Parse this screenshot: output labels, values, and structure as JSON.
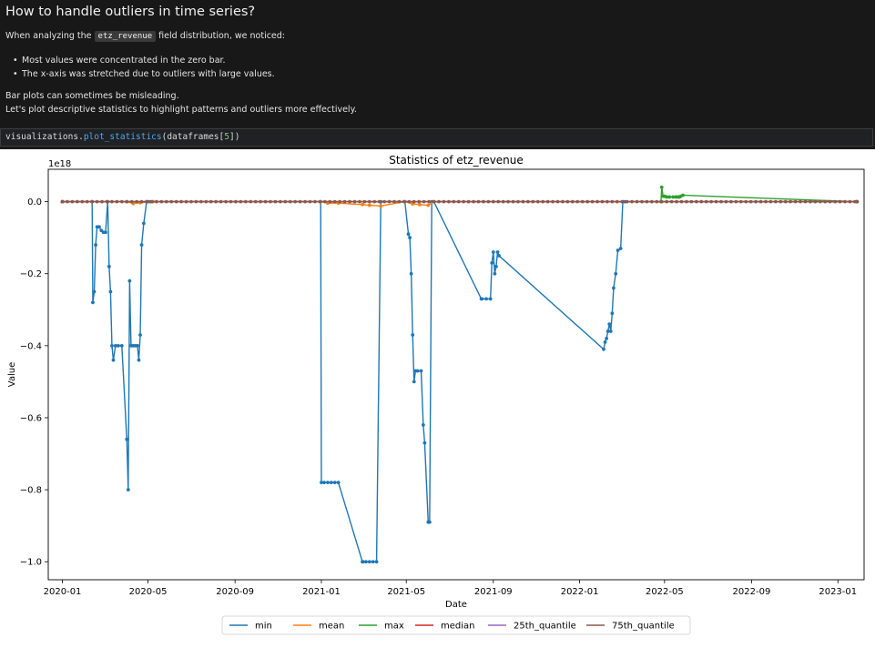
{
  "markdown": {
    "title": "How to handle outliers in time series?",
    "intro_before": "When analyzing the ",
    "intro_code": "etz_revenue",
    "intro_after": " field distribution, we noticed:",
    "bullets": [
      "Most values were concentrated in the zero bar.",
      "The x-axis was stretched due to outliers with large values."
    ],
    "outro_line1": "Bar plots can sometimes be misleading.",
    "outro_line2": "Let's plot descriptive statistics to highlight patterns and outliers more effectively."
  },
  "code_cell": {
    "obj": "visualizations",
    "dot": ".",
    "fn": "plot_statistics",
    "open": "(dataframes[",
    "index": "5",
    "close": "])"
  },
  "chart_data": {
    "type": "line",
    "title": "Statistics of etz_revenue",
    "xlabel": "Date",
    "ylabel": "Value",
    "y_scale_label": "1e18",
    "x_ticks": [
      "2020-01",
      "2020-05",
      "2020-09",
      "2021-01",
      "2021-05",
      "2021-09",
      "2022-01",
      "2022-05",
      "2022-09",
      "2023-01"
    ],
    "y_ticks": [
      "0.0",
      "−0.2",
      "−0.4",
      "−0.6",
      "−0.8",
      "−1.0"
    ],
    "ylim": [
      -1.05,
      0.09
    ],
    "xlim": [
      "2019-12-12",
      "2023-02-07"
    ],
    "legend_position": "bottom-center",
    "colors": {
      "min": "#1f77b4",
      "mean": "#ff7f0e",
      "max": "#2ca02c",
      "median": "#d62728",
      "25th_quantile": "#9467bd",
      "75th_quantile": "#8c564b"
    },
    "series": [
      {
        "name": "min",
        "x": [
          "2020-01-01",
          "2020-02-12",
          "2020-02-13",
          "2020-02-15",
          "2020-02-17",
          "2020-02-19",
          "2020-02-22",
          "2020-02-25",
          "2020-02-28",
          "2020-03-02",
          "2020-03-05",
          "2020-03-07",
          "2020-03-09",
          "2020-03-11",
          "2020-03-13",
          "2020-03-16",
          "2020-03-20",
          "2020-03-25",
          "2020-04-01",
          "2020-04-03",
          "2020-04-05",
          "2020-04-07",
          "2020-04-10",
          "2020-04-13",
          "2020-04-16",
          "2020-04-18",
          "2020-04-20",
          "2020-04-22",
          "2020-04-25",
          "2020-04-29",
          "2020-05-01",
          "2020-05-04",
          "2020-05-08",
          "2020-12-31",
          "2021-01-01",
          "2021-01-05",
          "2021-01-10",
          "2021-01-15",
          "2021-01-20",
          "2021-01-25",
          "2021-02-28",
          "2021-03-01",
          "2021-03-05",
          "2021-03-10",
          "2021-03-15",
          "2021-03-20",
          "2021-03-26",
          "2021-04-29",
          "2021-05-04",
          "2021-05-06",
          "2021-05-08",
          "2021-05-10",
          "2021-05-12",
          "2021-05-14",
          "2021-05-17",
          "2021-05-22",
          "2021-05-25",
          "2021-05-27",
          "2021-06-01",
          "2021-06-03",
          "2021-06-06",
          "2021-06-09",
          "2021-08-15",
          "2021-08-16",
          "2021-08-22",
          "2021-08-28",
          "2021-08-30",
          "2021-09-01",
          "2021-09-03",
          "2021-09-05",
          "2021-09-07",
          "2021-09-09",
          "2022-02-04",
          "2022-02-06",
          "2022-02-08",
          "2022-02-10",
          "2022-02-12",
          "2022-02-14",
          "2022-02-16",
          "2022-02-18",
          "2022-02-21",
          "2022-02-24",
          "2022-02-28",
          "2022-03-03",
          "2022-03-06",
          "2023-01-28"
        ],
        "values": [
          0,
          0,
          -0.28,
          -0.25,
          -0.12,
          -0.07,
          -0.07,
          -0.08,
          -0.085,
          -0.085,
          0,
          -0.18,
          -0.25,
          -0.4,
          -0.44,
          -0.4,
          -0.4,
          -0.4,
          -0.66,
          -0.8,
          -0.22,
          -0.4,
          -0.4,
          -0.4,
          -0.4,
          -0.44,
          -0.37,
          -0.12,
          -0.06,
          0,
          0,
          0,
          0,
          0,
          -0.78,
          -0.78,
          -0.78,
          -0.78,
          -0.78,
          -0.78,
          -1.0,
          -1.0,
          -1.0,
          -1.0,
          -1.0,
          -1.0,
          0,
          0,
          -0.09,
          -0.1,
          -0.2,
          -0.37,
          -0.5,
          -0.47,
          -0.47,
          -0.47,
          -0.62,
          -0.67,
          -0.89,
          -0.89,
          0,
          0,
          -0.27,
          -0.27,
          -0.27,
          -0.27,
          -0.17,
          -0.14,
          -0.2,
          -0.18,
          -0.14,
          -0.15,
          -0.41,
          -0.39,
          -0.38,
          -0.36,
          -0.34,
          -0.36,
          -0.31,
          -0.24,
          -0.2,
          -0.135,
          -0.13,
          0,
          0,
          0
        ]
      },
      {
        "name": "mean",
        "x": [
          "2020-01-01",
          "2020-04-01",
          "2020-04-10",
          "2020-04-20",
          "2020-05-08",
          "2020-12-31",
          "2021-01-10",
          "2021-01-25",
          "2021-02-28",
          "2021-03-10",
          "2021-03-26",
          "2021-04-29",
          "2021-05-10",
          "2021-05-20",
          "2021-06-01",
          "2021-06-09",
          "2023-01-28"
        ],
        "values": [
          0,
          0,
          -0.005,
          -0.003,
          0,
          0,
          -0.004,
          -0.004,
          -0.008,
          -0.01,
          -0.012,
          0,
          -0.006,
          -0.008,
          -0.01,
          0,
          0
        ]
      },
      {
        "name": "max",
        "x": [
          "2020-01-01",
          "2022-04-26",
          "2022-04-27",
          "2022-04-29",
          "2022-05-01",
          "2022-05-04",
          "2022-05-08",
          "2022-05-13",
          "2022-05-17",
          "2022-05-20",
          "2022-05-22",
          "2022-05-24",
          "2022-05-27",
          "2023-01-28"
        ],
        "values": [
          0,
          0,
          0.04,
          0.015,
          0.015,
          0.013,
          0.013,
          0.013,
          0.013,
          0.013,
          0.013,
          0.015,
          0.018,
          0
        ]
      },
      {
        "name": "median",
        "x": [
          "2020-01-01",
          "2023-01-28"
        ],
        "values": [
          0,
          0
        ]
      },
      {
        "name": "25th_quantile",
        "x": [
          "2020-01-01",
          "2023-01-28"
        ],
        "values": [
          0,
          0
        ]
      },
      {
        "name": "75th_quantile",
        "x": [
          "2020-01-01",
          "2023-01-28"
        ],
        "values": [
          0,
          0
        ]
      }
    ],
    "baseline_marker_interval_days": 7
  }
}
